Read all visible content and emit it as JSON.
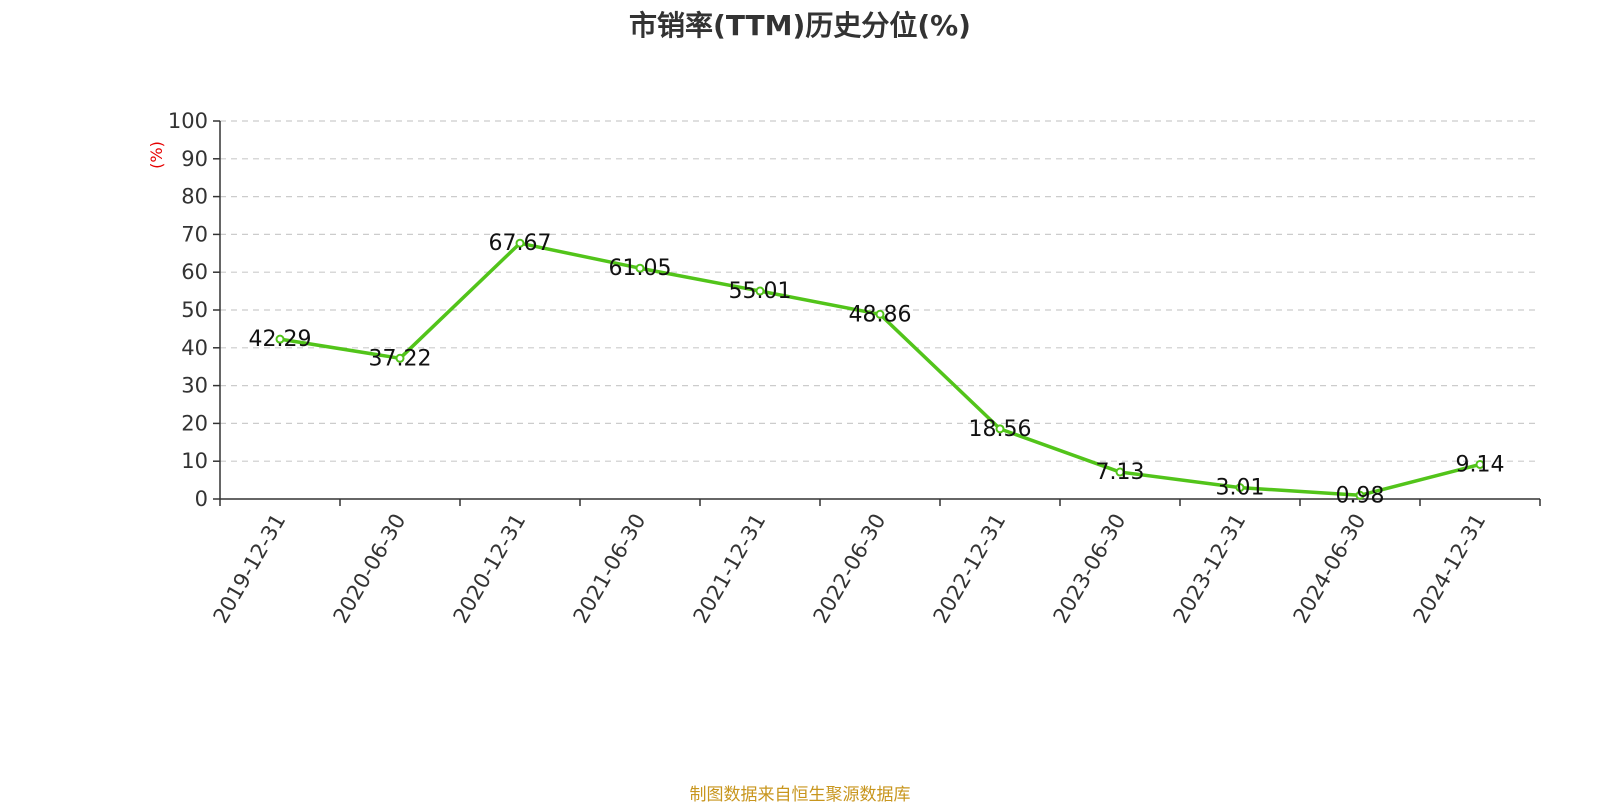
{
  "chart_data": {
    "type": "line",
    "title": "市销率(TTM)历史分位(%)",
    "ylabel": "(%)",
    "xlabel": "",
    "categories": [
      "2019-12-31",
      "2020-06-30",
      "2020-12-31",
      "2021-06-30",
      "2021-12-31",
      "2022-06-30",
      "2022-12-31",
      "2023-06-30",
      "2023-12-31",
      "2024-06-30",
      "2024-12-31"
    ],
    "series": [
      {
        "values": [
          42.29,
          37.22,
          67.67,
          61.05,
          55.01,
          48.86,
          18.56,
          7.13,
          3.01,
          0.98,
          9.14
        ],
        "labels": [
          "42.29",
          "37.22",
          "67.67",
          "61.05",
          "55.01",
          "48.86",
          "18.56",
          "7.13",
          "3.01",
          "0.98",
          "9.14"
        ],
        "color": "#52c41a"
      }
    ],
    "ylim": [
      0,
      100
    ],
    "yticks": [
      "0",
      "10",
      "20",
      "30",
      "40",
      "50",
      "60",
      "70",
      "80",
      "90",
      "100"
    ],
    "grid": true,
    "grid_style": "dashed",
    "legend": "none"
  },
  "source": "制图数据来自恒生聚源数据库"
}
